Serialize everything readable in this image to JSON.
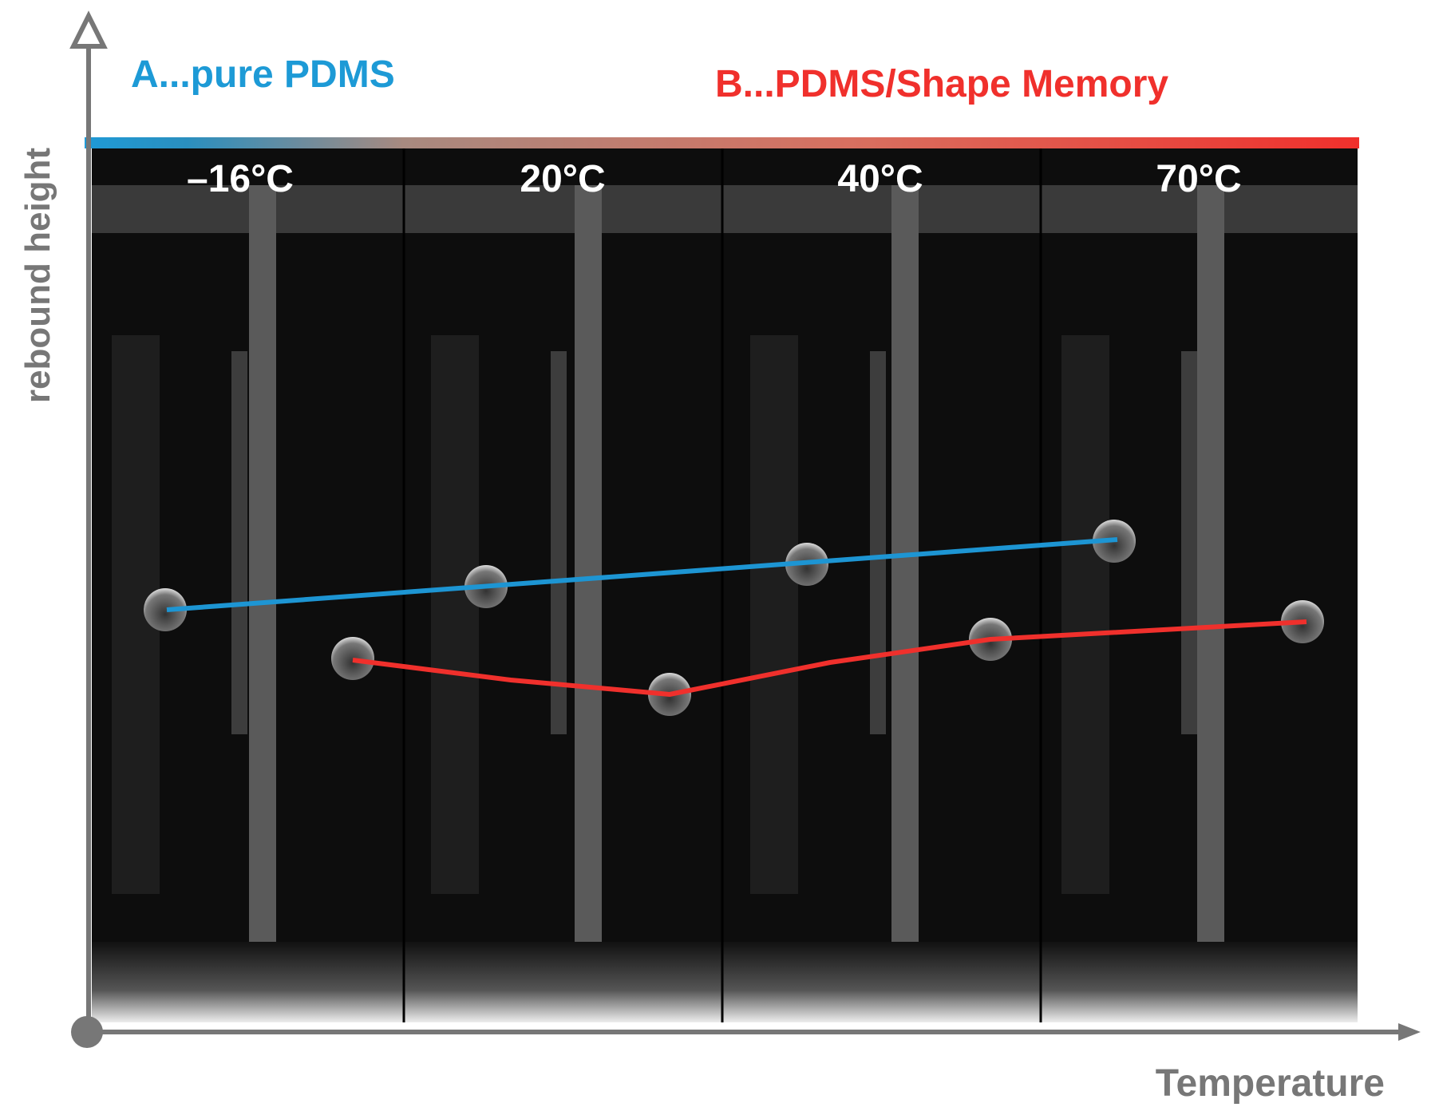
{
  "labels": {
    "series_a": "A...pure PDMS",
    "series_b": "B...PDMS/Shape Memory",
    "y_axis": "rebound height",
    "x_axis": "Temperature"
  },
  "panels": [
    "–16°C",
    "20°C",
    "40°C",
    "70°C"
  ]
}
